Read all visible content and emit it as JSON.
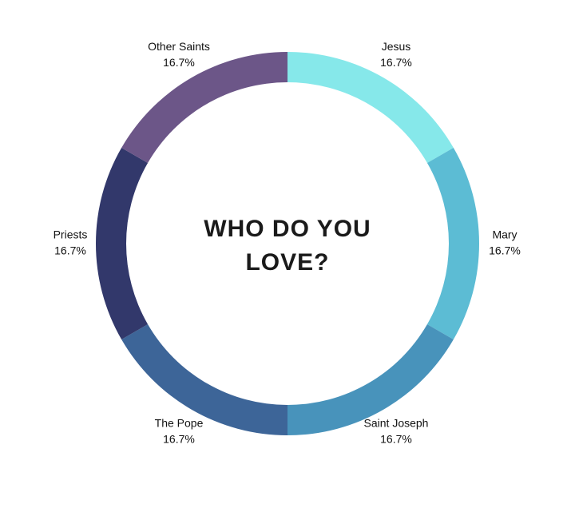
{
  "chart_data": {
    "type": "donut",
    "title": "WHO DO YOU LOVE?",
    "categories": [
      "Jesus",
      "Mary",
      "Saint Joseph",
      "The Pope",
      "Priests",
      "Other Saints"
    ],
    "values": [
      16.7,
      16.7,
      16.7,
      16.7,
      16.7,
      16.7
    ],
    "value_labels": [
      "16.7%",
      "16.7%",
      "16.7%",
      "16.7%",
      "16.7%",
      "16.7%"
    ],
    "colors": [
      "#86e8ea",
      "#5cbcd4",
      "#4893bb",
      "#3d6598",
      "#32386b",
      "#6c5688"
    ]
  }
}
